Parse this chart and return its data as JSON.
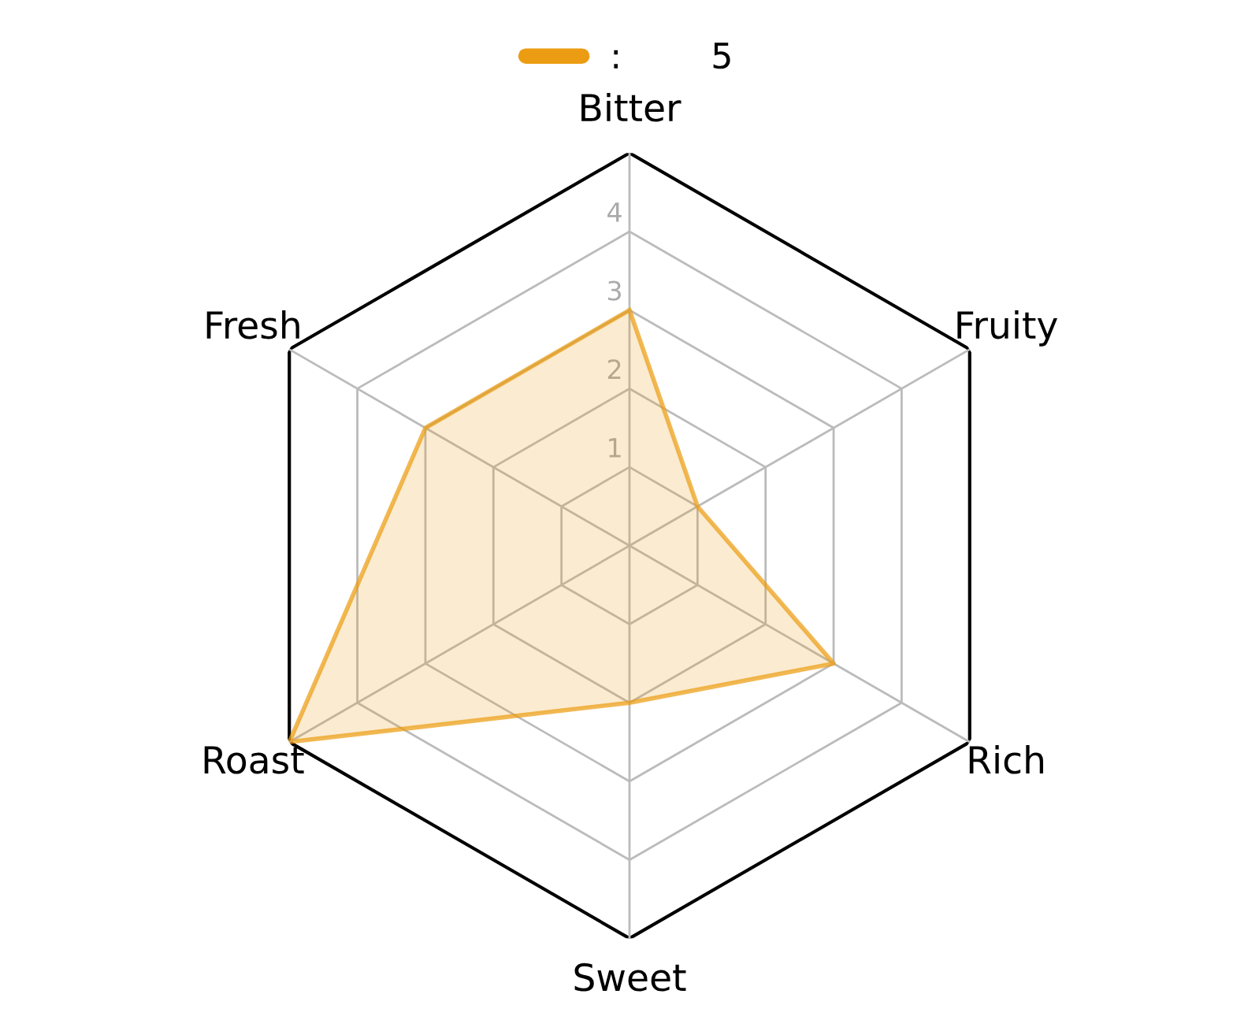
{
  "chart_data": {
    "type": "radar",
    "categories": [
      "Bitter",
      "Fruity",
      "Rich",
      "Sweet",
      "Roast",
      "Fresh"
    ],
    "series": [
      {
        "name": ":        5",
        "color": "#ec9c12",
        "values": [
          3,
          1,
          3,
          2,
          5,
          3
        ]
      }
    ],
    "ylim": [
      0,
      5
    ],
    "yticks": [
      1,
      2,
      3,
      4
    ],
    "grid": true,
    "legend": "top",
    "marker": "none",
    "line_style": "solid"
  }
}
